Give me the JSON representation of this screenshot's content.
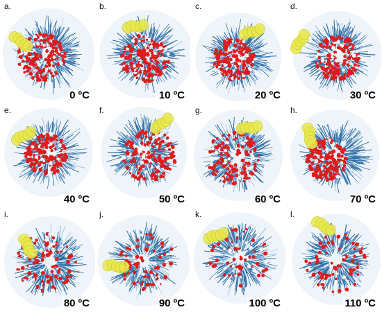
{
  "colors": {
    "chain": "#2f6fa8",
    "chain_light": "#9cc0de",
    "water_red": "#e01b1b",
    "water_white": "#f4f4f4",
    "solute": "#e8e84a"
  },
  "panels": [
    {
      "letter": "a.",
      "temp": "0 ºC",
      "water_density": 1.0
    },
    {
      "letter": "b.",
      "temp": "10 ºC",
      "water_density": 1.0
    },
    {
      "letter": "c.",
      "temp": "20 ºC",
      "water_density": 0.95
    },
    {
      "letter": "d.",
      "temp": "30 ºC",
      "water_density": 0.95
    },
    {
      "letter": "e.",
      "temp": "40 ºC",
      "water_density": 0.95
    },
    {
      "letter": "f.",
      "temp": "50 ºC",
      "water_density": 0.8
    },
    {
      "letter": "g.",
      "temp": "60 ºC",
      "water_density": 0.75
    },
    {
      "letter": "h.",
      "temp": "70 ºC",
      "water_density": 0.95
    },
    {
      "letter": "i.",
      "temp": "80 ºC",
      "water_density": 0.6
    },
    {
      "letter": "j.",
      "temp": "90 ºC",
      "water_density": 0.5
    },
    {
      "letter": "k.",
      "temp": "100 ºC",
      "water_density": 0.4
    },
    {
      "letter": "l.",
      "temp": "110 ºC",
      "water_density": 0.45
    }
  ]
}
